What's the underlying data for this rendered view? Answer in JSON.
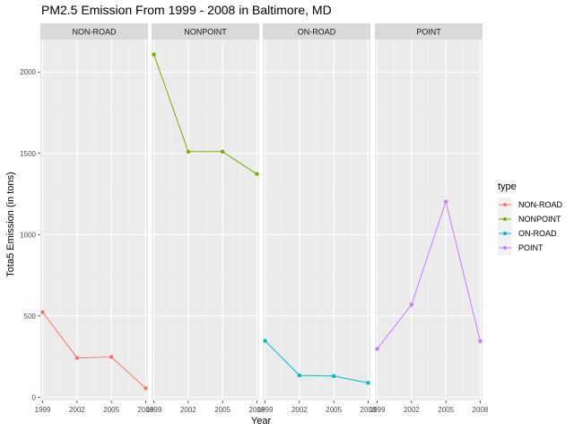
{
  "chart_data": {
    "type": "line",
    "title": "PM2.5 Emission From 1999 - 2008 in Baltimore, MD",
    "xlabel": "Year",
    "ylabel": "Tota5 Emission (in tons)",
    "x_ticks": [
      1999,
      2002,
      2005,
      2008
    ],
    "y_ticks": [
      0,
      500,
      1000,
      1500,
      2000
    ],
    "ylim": [
      -20,
      2200
    ],
    "xlim": [
      1998.8,
      2008.2
    ],
    "grid": true,
    "legend": {
      "title": "type",
      "placement": "right"
    },
    "facets": [
      "NON-ROAD",
      "NONPOINT",
      "ON-ROAD",
      "POINT"
    ],
    "series": [
      {
        "name": "NON-ROAD",
        "color": "#F8766D",
        "x": [
          1999,
          2002,
          2005,
          2008
        ],
        "values": [
          523,
          242,
          248,
          55
        ]
      },
      {
        "name": "NONPOINT",
        "color": "#7CAE00",
        "x": [
          1999,
          2002,
          2005,
          2008
        ],
        "values": [
          2108,
          1510,
          1510,
          1373
        ]
      },
      {
        "name": "ON-ROAD",
        "color": "#00BFC4",
        "x": [
          1999,
          2002,
          2005,
          2008
        ],
        "values": [
          347,
          134,
          130,
          88
        ]
      },
      {
        "name": "POINT",
        "color": "#C77CFF",
        "x": [
          1999,
          2002,
          2005,
          2008
        ],
        "values": [
          297,
          569,
          1203,
          345
        ]
      }
    ]
  }
}
